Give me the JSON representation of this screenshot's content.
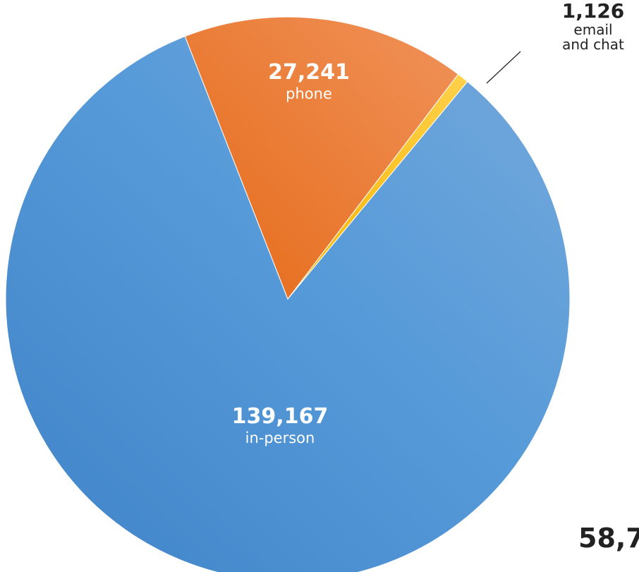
{
  "chart_data": {
    "type": "pie",
    "title": "",
    "slices": [
      {
        "label": "in-person",
        "value": 139167,
        "display": "139,167",
        "color": "#5b9bd5"
      },
      {
        "label": "phone",
        "value": 27241,
        "display": "27,241",
        "color": "#ed7d31"
      },
      {
        "label": "email and chat",
        "value": 1126,
        "display": "1,126",
        "color": "#ffc000"
      }
    ],
    "email_label_lines": [
      "email",
      "and chat"
    ],
    "partial_label": "58,7"
  }
}
